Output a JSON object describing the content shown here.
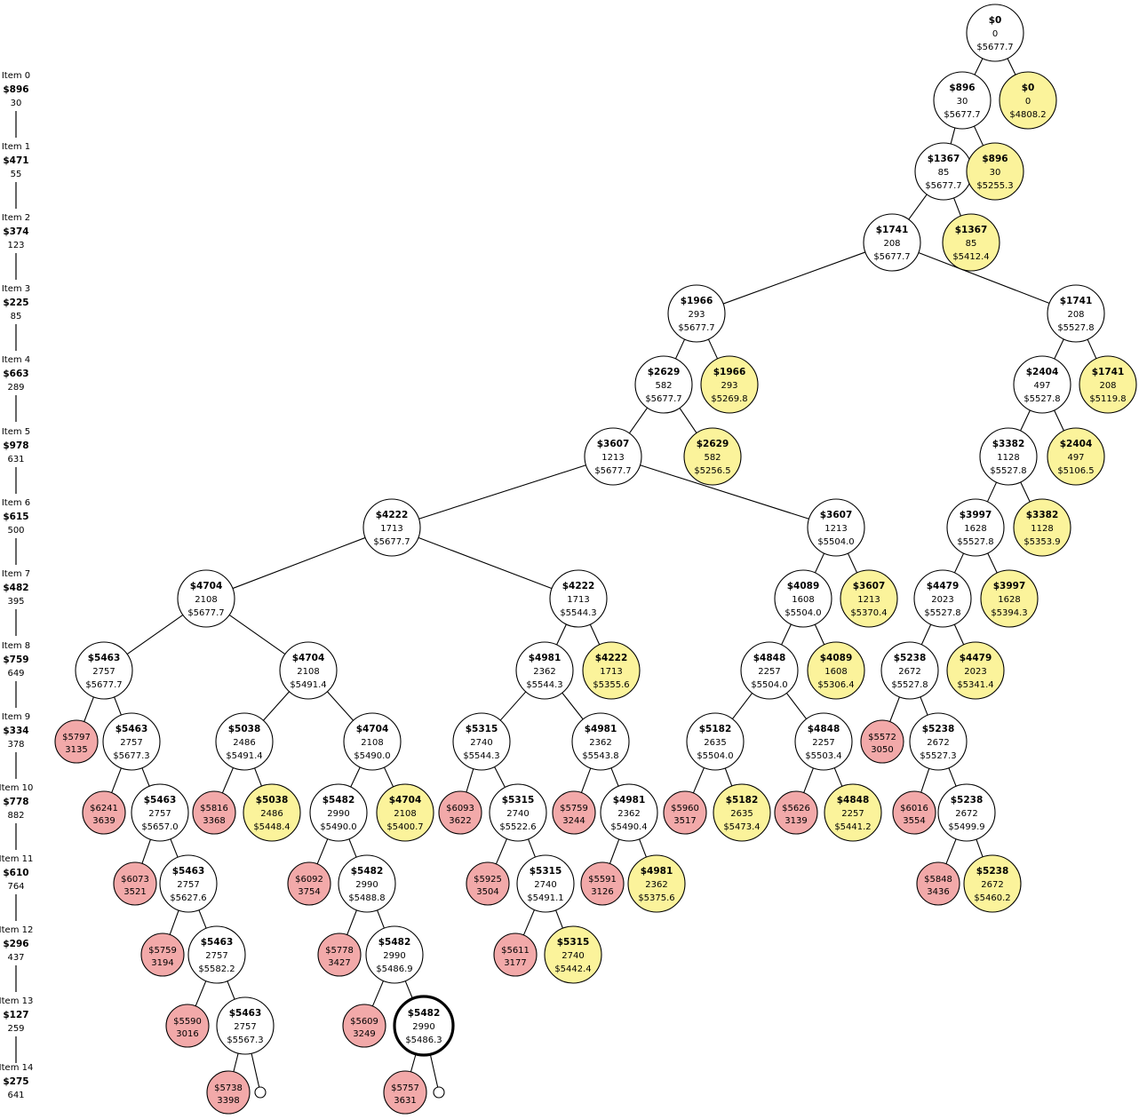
{
  "colors": {
    "open_node": "#ffffff",
    "included_leaf": "#fbf39b",
    "pruned_node": "#f2a9a9",
    "stroke": "#000000",
    "final_node_stroke": "#000000"
  },
  "items": [
    {
      "title": "Item 0",
      "value": "$896",
      "weight": "30"
    },
    {
      "title": "Item 1",
      "value": "$471",
      "weight": "55"
    },
    {
      "title": "Item 2",
      "value": "$374",
      "weight": "123"
    },
    {
      "title": "Item 3",
      "value": "$225",
      "weight": "85"
    },
    {
      "title": "Item 4",
      "value": "$663",
      "weight": "289"
    },
    {
      "title": "Item 5",
      "value": "$978",
      "weight": "631"
    },
    {
      "title": "Item 6",
      "value": "$615",
      "weight": "500"
    },
    {
      "title": "Item 7",
      "value": "$482",
      "weight": "395"
    },
    {
      "title": "Item 8",
      "value": "$759",
      "weight": "649"
    },
    {
      "title": "Item 9",
      "value": "$334",
      "weight": "378"
    },
    {
      "title": "Item 10",
      "value": "$778",
      "weight": "882"
    },
    {
      "title": "Item 11",
      "value": "$610",
      "weight": "764"
    },
    {
      "title": "Item 12",
      "value": "$296",
      "weight": "437"
    },
    {
      "title": "Item 13",
      "value": "$127",
      "weight": "259"
    },
    {
      "title": "Item 14",
      "value": "$275",
      "weight": "641"
    }
  ],
  "nodes": [
    {
      "id": "r",
      "kind": "open",
      "value": "$0",
      "weight": "0",
      "bound": "$5677.7"
    },
    {
      "id": "a0",
      "kind": "open",
      "value": "$896",
      "weight": "30",
      "bound": "$5677.7",
      "parent": "r"
    },
    {
      "id": "y0",
      "kind": "leaf",
      "value": "$0",
      "weight": "0",
      "bound": "$4808.2",
      "parent": "r"
    },
    {
      "id": "a1",
      "kind": "open",
      "value": "$1367",
      "weight": "85",
      "bound": "$5677.7",
      "parent": "a0"
    },
    {
      "id": "y1",
      "kind": "leaf",
      "value": "$896",
      "weight": "30",
      "bound": "$5255.3",
      "parent": "a0"
    },
    {
      "id": "a2",
      "kind": "open",
      "value": "$1741",
      "weight": "208",
      "bound": "$5677.7",
      "parent": "a1"
    },
    {
      "id": "y2",
      "kind": "leaf",
      "value": "$1367",
      "weight": "85",
      "bound": "$5412.4",
      "parent": "a1"
    },
    {
      "id": "a3",
      "kind": "open",
      "value": "$1966",
      "weight": "293",
      "bound": "$5677.7",
      "parent": "a2"
    },
    {
      "id": "b3",
      "kind": "open",
      "value": "$1741",
      "weight": "208",
      "bound": "$5527.8",
      "parent": "a2"
    },
    {
      "id": "a4",
      "kind": "open",
      "value": "$2629",
      "weight": "582",
      "bound": "$5677.7",
      "parent": "a3"
    },
    {
      "id": "y4a",
      "kind": "leaf",
      "value": "$1966",
      "weight": "293",
      "bound": "$5269.8",
      "parent": "a3"
    },
    {
      "id": "b4",
      "kind": "open",
      "value": "$2404",
      "weight": "497",
      "bound": "$5527.8",
      "parent": "b3"
    },
    {
      "id": "y4b",
      "kind": "leaf",
      "value": "$1741",
      "weight": "208",
      "bound": "$5119.8",
      "parent": "b3"
    },
    {
      "id": "a5",
      "kind": "open",
      "value": "$3607",
      "weight": "1213",
      "bound": "$5677.7",
      "parent": "a4"
    },
    {
      "id": "y5a",
      "kind": "leaf",
      "value": "$2629",
      "weight": "582",
      "bound": "$5256.5",
      "parent": "a4"
    },
    {
      "id": "b5",
      "kind": "open",
      "value": "$3382",
      "weight": "1128",
      "bound": "$5527.8",
      "parent": "b4"
    },
    {
      "id": "y5b",
      "kind": "leaf",
      "value": "$2404",
      "weight": "497",
      "bound": "$5106.5",
      "parent": "b4"
    },
    {
      "id": "a6",
      "kind": "open",
      "value": "$4222",
      "weight": "1713",
      "bound": "$5677.7",
      "parent": "a5"
    },
    {
      "id": "c6",
      "kind": "open",
      "value": "$3607",
      "weight": "1213",
      "bound": "$5504.0",
      "parent": "a5"
    },
    {
      "id": "b6",
      "kind": "open",
      "value": "$3997",
      "weight": "1628",
      "bound": "$5527.8",
      "parent": "b5"
    },
    {
      "id": "y6b",
      "kind": "leaf",
      "value": "$3382",
      "weight": "1128",
      "bound": "$5353.9",
      "parent": "b5"
    },
    {
      "id": "a7",
      "kind": "open",
      "value": "$4704",
      "weight": "2108",
      "bound": "$5677.7",
      "parent": "a6"
    },
    {
      "id": "d7",
      "kind": "open",
      "value": "$4222",
      "weight": "1713",
      "bound": "$5544.3",
      "parent": "a6"
    },
    {
      "id": "c7",
      "kind": "open",
      "value": "$4089",
      "weight": "1608",
      "bound": "$5504.0",
      "parent": "c6"
    },
    {
      "id": "y7c",
      "kind": "leaf",
      "value": "$3607",
      "weight": "1213",
      "bound": "$5370.4",
      "parent": "c6"
    },
    {
      "id": "b7",
      "kind": "open",
      "value": "$4479",
      "weight": "2023",
      "bound": "$5527.8",
      "parent": "b6"
    },
    {
      "id": "y7b",
      "kind": "leaf",
      "value": "$3997",
      "weight": "1628",
      "bound": "$5394.3",
      "parent": "b6"
    },
    {
      "id": "a8",
      "kind": "open",
      "value": "$5463",
      "weight": "2757",
      "bound": "$5677.7",
      "parent": "a7"
    },
    {
      "id": "e8",
      "kind": "open",
      "value": "$4704",
      "weight": "2108",
      "bound": "$5491.4",
      "parent": "a7"
    },
    {
      "id": "d8",
      "kind": "open",
      "value": "$4981",
      "weight": "2362",
      "bound": "$5544.3",
      "parent": "d7"
    },
    {
      "id": "y8d",
      "kind": "leaf",
      "value": "$4222",
      "weight": "1713",
      "bound": "$5355.6",
      "parent": "d7"
    },
    {
      "id": "c8",
      "kind": "open",
      "value": "$4848",
      "weight": "2257",
      "bound": "$5504.0",
      "parent": "c7"
    },
    {
      "id": "y8c",
      "kind": "leaf",
      "value": "$4089",
      "weight": "1608",
      "bound": "$5306.4",
      "parent": "c7"
    },
    {
      "id": "b8",
      "kind": "open",
      "value": "$5238",
      "weight": "2672",
      "bound": "$5527.8",
      "parent": "b7"
    },
    {
      "id": "y8b",
      "kind": "leaf",
      "value": "$4479",
      "weight": "2023",
      "bound": "$5341.4",
      "parent": "b7"
    },
    {
      "id": "p9a",
      "kind": "pruned",
      "value": "$5797",
      "weight": "3135",
      "parent": "a8"
    },
    {
      "id": "a9",
      "kind": "open",
      "value": "$5463",
      "weight": "2757",
      "bound": "$5677.3",
      "parent": "a8"
    },
    {
      "id": "e9",
      "kind": "open",
      "value": "$5038",
      "weight": "2486",
      "bound": "$5491.4",
      "parent": "e8"
    },
    {
      "id": "f9",
      "kind": "open",
      "value": "$4704",
      "weight": "2108",
      "bound": "$5490.0",
      "parent": "e8"
    },
    {
      "id": "d9",
      "kind": "open",
      "value": "$5315",
      "weight": "2740",
      "bound": "$5544.3",
      "parent": "d8"
    },
    {
      "id": "g9",
      "kind": "open",
      "value": "$4981",
      "weight": "2362",
      "bound": "$5543.8",
      "parent": "d8"
    },
    {
      "id": "c9",
      "kind": "open",
      "value": "$5182",
      "weight": "2635",
      "bound": "$5504.0",
      "parent": "c8"
    },
    {
      "id": "h9",
      "kind": "open",
      "value": "$4848",
      "weight": "2257",
      "bound": "$5503.4",
      "parent": "c8"
    },
    {
      "id": "p9b",
      "kind": "pruned",
      "value": "$5572",
      "weight": "3050",
      "parent": "b8"
    },
    {
      "id": "b9",
      "kind": "open",
      "value": "$5238",
      "weight": "2672",
      "bound": "$5527.3",
      "parent": "b8"
    },
    {
      "id": "p10a",
      "kind": "pruned",
      "value": "$6241",
      "weight": "3639",
      "parent": "a9"
    },
    {
      "id": "a10",
      "kind": "open",
      "value": "$5463",
      "weight": "2757",
      "bound": "$5657.0",
      "parent": "a9"
    },
    {
      "id": "p10e",
      "kind": "pruned",
      "value": "$5816",
      "weight": "3368",
      "parent": "e9"
    },
    {
      "id": "y10e",
      "kind": "leaf",
      "value": "$5038",
      "weight": "2486",
      "bound": "$5448.4",
      "parent": "e9"
    },
    {
      "id": "f10",
      "kind": "open",
      "value": "$5482",
      "weight": "2990",
      "bound": "$5490.0",
      "parent": "f9"
    },
    {
      "id": "y10f",
      "kind": "leaf",
      "value": "$4704",
      "weight": "2108",
      "bound": "$5400.7",
      "parent": "f9"
    },
    {
      "id": "p10d",
      "kind": "pruned",
      "value": "$6093",
      "weight": "3622",
      "parent": "d9"
    },
    {
      "id": "d10",
      "kind": "open",
      "value": "$5315",
      "weight": "2740",
      "bound": "$5522.6",
      "parent": "d9"
    },
    {
      "id": "p10g",
      "kind": "pruned",
      "value": "$5759",
      "weight": "3244",
      "parent": "g9"
    },
    {
      "id": "g10",
      "kind": "open",
      "value": "$4981",
      "weight": "2362",
      "bound": "$5490.4",
      "parent": "g9"
    },
    {
      "id": "p10c",
      "kind": "pruned",
      "value": "$5960",
      "weight": "3517",
      "parent": "c9"
    },
    {
      "id": "y10c",
      "kind": "leaf",
      "value": "$5182",
      "weight": "2635",
      "bound": "$5473.4",
      "parent": "c9"
    },
    {
      "id": "p10h",
      "kind": "pruned",
      "value": "$5626",
      "weight": "3139",
      "parent": "h9"
    },
    {
      "id": "y10h",
      "kind": "leaf",
      "value": "$4848",
      "weight": "2257",
      "bound": "$5441.2",
      "parent": "h9"
    },
    {
      "id": "p10b",
      "kind": "pruned",
      "value": "$6016",
      "weight": "3554",
      "parent": "b9"
    },
    {
      "id": "b10",
      "kind": "open",
      "value": "$5238",
      "weight": "2672",
      "bound": "$5499.9",
      "parent": "b9"
    },
    {
      "id": "p11a",
      "kind": "pruned",
      "value": "$6073",
      "weight": "3521",
      "parent": "a10"
    },
    {
      "id": "a11",
      "kind": "open",
      "value": "$5463",
      "weight": "2757",
      "bound": "$5627.6",
      "parent": "a10"
    },
    {
      "id": "p11f",
      "kind": "pruned",
      "value": "$6092",
      "weight": "3754",
      "parent": "f10"
    },
    {
      "id": "f11",
      "kind": "open",
      "value": "$5482",
      "weight": "2990",
      "bound": "$5488.8",
      "parent": "f10"
    },
    {
      "id": "p11d",
      "kind": "pruned",
      "value": "$5925",
      "weight": "3504",
      "parent": "d10"
    },
    {
      "id": "d11",
      "kind": "open",
      "value": "$5315",
      "weight": "2740",
      "bound": "$5491.1",
      "parent": "d10"
    },
    {
      "id": "p11g",
      "kind": "pruned",
      "value": "$5591",
      "weight": "3126",
      "parent": "g10"
    },
    {
      "id": "y11g",
      "kind": "leaf",
      "value": "$4981",
      "weight": "2362",
      "bound": "$5375.6",
      "parent": "g10"
    },
    {
      "id": "p11b",
      "kind": "pruned",
      "value": "$5848",
      "weight": "3436",
      "parent": "b10"
    },
    {
      "id": "y11b",
      "kind": "leaf",
      "value": "$5238",
      "weight": "2672",
      "bound": "$5460.2",
      "parent": "b10"
    },
    {
      "id": "p12a",
      "kind": "pruned",
      "value": "$5759",
      "weight": "3194",
      "parent": "a11"
    },
    {
      "id": "a12",
      "kind": "open",
      "value": "$5463",
      "weight": "2757",
      "bound": "$5582.2",
      "parent": "a11"
    },
    {
      "id": "p12f",
      "kind": "pruned",
      "value": "$5778",
      "weight": "3427",
      "parent": "f11"
    },
    {
      "id": "f12",
      "kind": "open",
      "value": "$5482",
      "weight": "2990",
      "bound": "$5486.9",
      "parent": "f11"
    },
    {
      "id": "p12d",
      "kind": "pruned",
      "value": "$5611",
      "weight": "3177",
      "parent": "d11"
    },
    {
      "id": "y12d",
      "kind": "leaf",
      "value": "$5315",
      "weight": "2740",
      "bound": "$5442.4",
      "parent": "d11"
    },
    {
      "id": "p13a",
      "kind": "pruned",
      "value": "$5590",
      "weight": "3016",
      "parent": "a12"
    },
    {
      "id": "a13",
      "kind": "open",
      "value": "$5463",
      "weight": "2757",
      "bound": "$5567.3",
      "parent": "a12"
    },
    {
      "id": "p13f",
      "kind": "pruned",
      "value": "$5609",
      "weight": "3249",
      "parent": "f12"
    },
    {
      "id": "best",
      "kind": "best",
      "value": "$5482",
      "weight": "2990",
      "bound": "$5486.3",
      "parent": "f12"
    },
    {
      "id": "p14a",
      "kind": "pruned",
      "value": "$5738",
      "weight": "3398",
      "parent": "a13"
    },
    {
      "id": "s14a",
      "kind": "stub",
      "parent": "a13"
    },
    {
      "id": "p14f",
      "kind": "pruned",
      "value": "$5757",
      "weight": "3631",
      "parent": "best"
    },
    {
      "id": "s14f",
      "kind": "stub",
      "parent": "best"
    }
  ]
}
